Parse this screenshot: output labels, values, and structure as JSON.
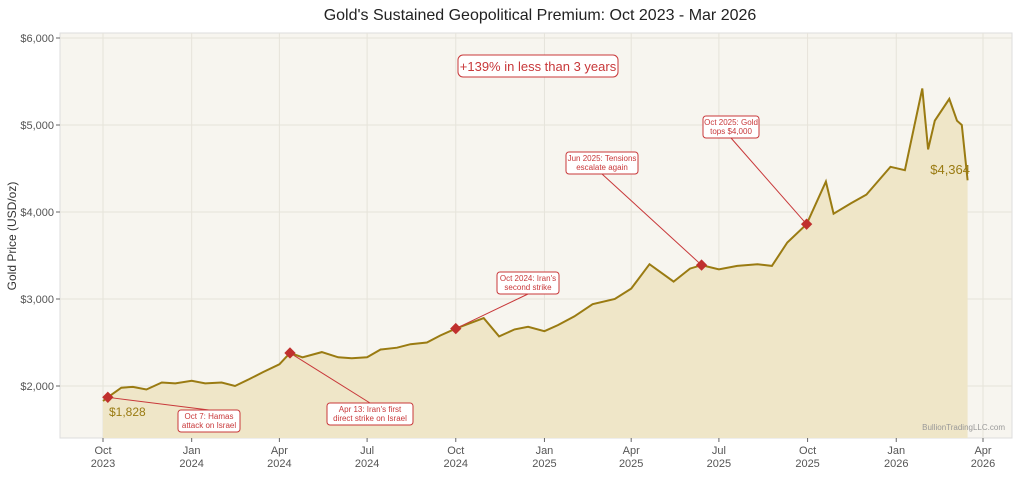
{
  "chart_data": {
    "type": "area",
    "title": "Gold's Sustained Geopolitical Premium: Oct 2023 - Mar 2026",
    "ylabel": "Gold Price (USD/oz)",
    "xlabel": "",
    "ylim": [
      1400,
      6050
    ],
    "xlim": [
      "2023-09-15",
      "2026-04-20"
    ],
    "grid": true,
    "colors": {
      "line": "#9a7b12",
      "fill": "#efe6c8",
      "plot_bg": "#f7f5ef",
      "annotation": "#c8383a",
      "marker": "#c0302e"
    },
    "yticks": [
      {
        "value": 2000,
        "label": "$2,000"
      },
      {
        "value": 3000,
        "label": "$3,000"
      },
      {
        "value": 4000,
        "label": "$4,000"
      },
      {
        "value": 5000,
        "label": "$5,000"
      },
      {
        "value": 6000,
        "label": "$6,000"
      }
    ],
    "xticks": [
      {
        "date": "2023-10-01",
        "label": [
          "Oct",
          "2023"
        ]
      },
      {
        "date": "2024-01-01",
        "label": [
          "Jan",
          "2024"
        ]
      },
      {
        "date": "2024-04-01",
        "label": [
          "Apr",
          "2024"
        ]
      },
      {
        "date": "2024-07-01",
        "label": [
          "Jul",
          "2024"
        ]
      },
      {
        "date": "2024-10-01",
        "label": [
          "Oct",
          "2024"
        ]
      },
      {
        "date": "2025-01-01",
        "label": [
          "Jan",
          "2025"
        ]
      },
      {
        "date": "2025-04-01",
        "label": [
          "Apr",
          "2025"
        ]
      },
      {
        "date": "2025-07-01",
        "label": [
          "Jul",
          "2025"
        ]
      },
      {
        "date": "2025-10-01",
        "label": [
          "Oct",
          "2025"
        ]
      },
      {
        "date": "2026-01-01",
        "label": [
          "Jan",
          "2026"
        ]
      },
      {
        "date": "2026-04-01",
        "label": [
          "Apr",
          "2026"
        ]
      }
    ],
    "series": [
      {
        "x": [
          "2023-10-01",
          "2023-10-06",
          "2023-10-20",
          "2023-11-01",
          "2023-11-15",
          "2023-12-01",
          "2023-12-15",
          "2024-01-01",
          "2024-01-15",
          "2024-02-01",
          "2024-02-15",
          "2024-03-01",
          "2024-03-15",
          "2024-04-01",
          "2024-04-12",
          "2024-04-25",
          "2024-05-15",
          "2024-06-01",
          "2024-06-15",
          "2024-07-01",
          "2024-07-15",
          "2024-08-01",
          "2024-08-15",
          "2024-09-01",
          "2024-09-15",
          "2024-10-01",
          "2024-10-30",
          "2024-11-15",
          "2024-12-01",
          "2024-12-15",
          "2025-01-01",
          "2025-01-15",
          "2025-02-01",
          "2025-02-20",
          "2025-03-15",
          "2025-04-01",
          "2025-04-20",
          "2025-05-15",
          "2025-06-01",
          "2025-06-13",
          "2025-07-01",
          "2025-07-20",
          "2025-08-10",
          "2025-08-25",
          "2025-09-10",
          "2025-09-30",
          "2025-10-20",
          "2025-10-28",
          "2025-11-15",
          "2025-12-01",
          "2025-12-26",
          "2026-01-10",
          "2026-01-28",
          "2026-02-03",
          "2026-02-10",
          "2026-02-25",
          "2026-03-05",
          "2026-03-10",
          "2026-03-16"
        ],
        "y": [
          1828,
          1870,
          1980,
          1990,
          1960,
          2040,
          2030,
          2060,
          2030,
          2040,
          2000,
          2080,
          2160,
          2250,
          2380,
          2330,
          2390,
          2330,
          2320,
          2330,
          2420,
          2440,
          2480,
          2500,
          2580,
          2660,
          2780,
          2570,
          2650,
          2680,
          2630,
          2700,
          2800,
          2940,
          3000,
          3120,
          3400,
          3200,
          3350,
          3390,
          3340,
          3380,
          3400,
          3380,
          3650,
          3860,
          4350,
          3980,
          4100,
          4200,
          4520,
          4480,
          5420,
          4720,
          5050,
          5300,
          5050,
          5000,
          4364
        ]
      }
    ],
    "start_label": "$1,828",
    "end_label": "$4,364",
    "annotations": [
      {
        "date": "2023-10-06",
        "value": 1870,
        "text": [
          "Oct 7: Hamas",
          "attack on Israel"
        ]
      },
      {
        "date": "2024-04-12",
        "value": 2380,
        "text": [
          "Apr 13: Iran's first",
          "direct strike on Israel"
        ]
      },
      {
        "date": "2024-10-01",
        "value": 2660,
        "text": [
          "Oct 2024: Iran's",
          "second strike"
        ]
      },
      {
        "date": "2025-06-13",
        "value": 3390,
        "text": [
          "Jun 2025: Tensions",
          "escalate again"
        ]
      },
      {
        "date": "2025-09-30",
        "value": 3860,
        "text": [
          "Oct 2025: Gold",
          "tops $4,000"
        ]
      }
    ],
    "callout": "+139% in less than 3 years",
    "watermark": "BullionTradingLLC.com"
  }
}
